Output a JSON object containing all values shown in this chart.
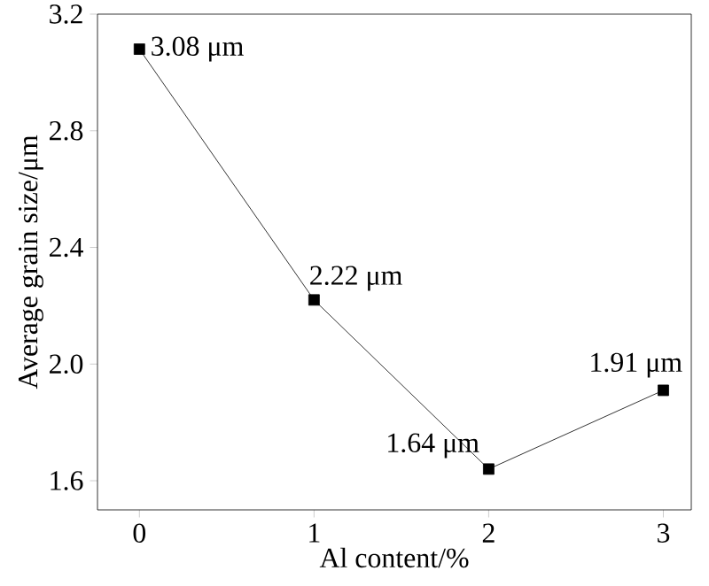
{
  "chart_data": {
    "type": "line",
    "xlabel": "Al content/%",
    "ylabel": "Average grain size/μm",
    "x": [
      0,
      1,
      2,
      3
    ],
    "series": [
      {
        "color": "#000000",
        "values": [
          3.08,
          2.22,
          1.64,
          1.91
        ],
        "value_labels": [
          "3.08 μm",
          "2.22 μm",
          "1.64 μm",
          "1.91 μm"
        ]
      }
    ],
    "xlim": [
      -0.24,
      3.16
    ],
    "ylim": [
      1.5,
      3.2
    ],
    "xticks": [
      0,
      1,
      2,
      3
    ],
    "yticks": [
      1.6,
      {
        "value": 2,
        "label": "2.0"
      },
      2.4,
      2.8,
      3.2
    ],
    "marker": "square",
    "line_style": "solid",
    "grid": false
  }
}
